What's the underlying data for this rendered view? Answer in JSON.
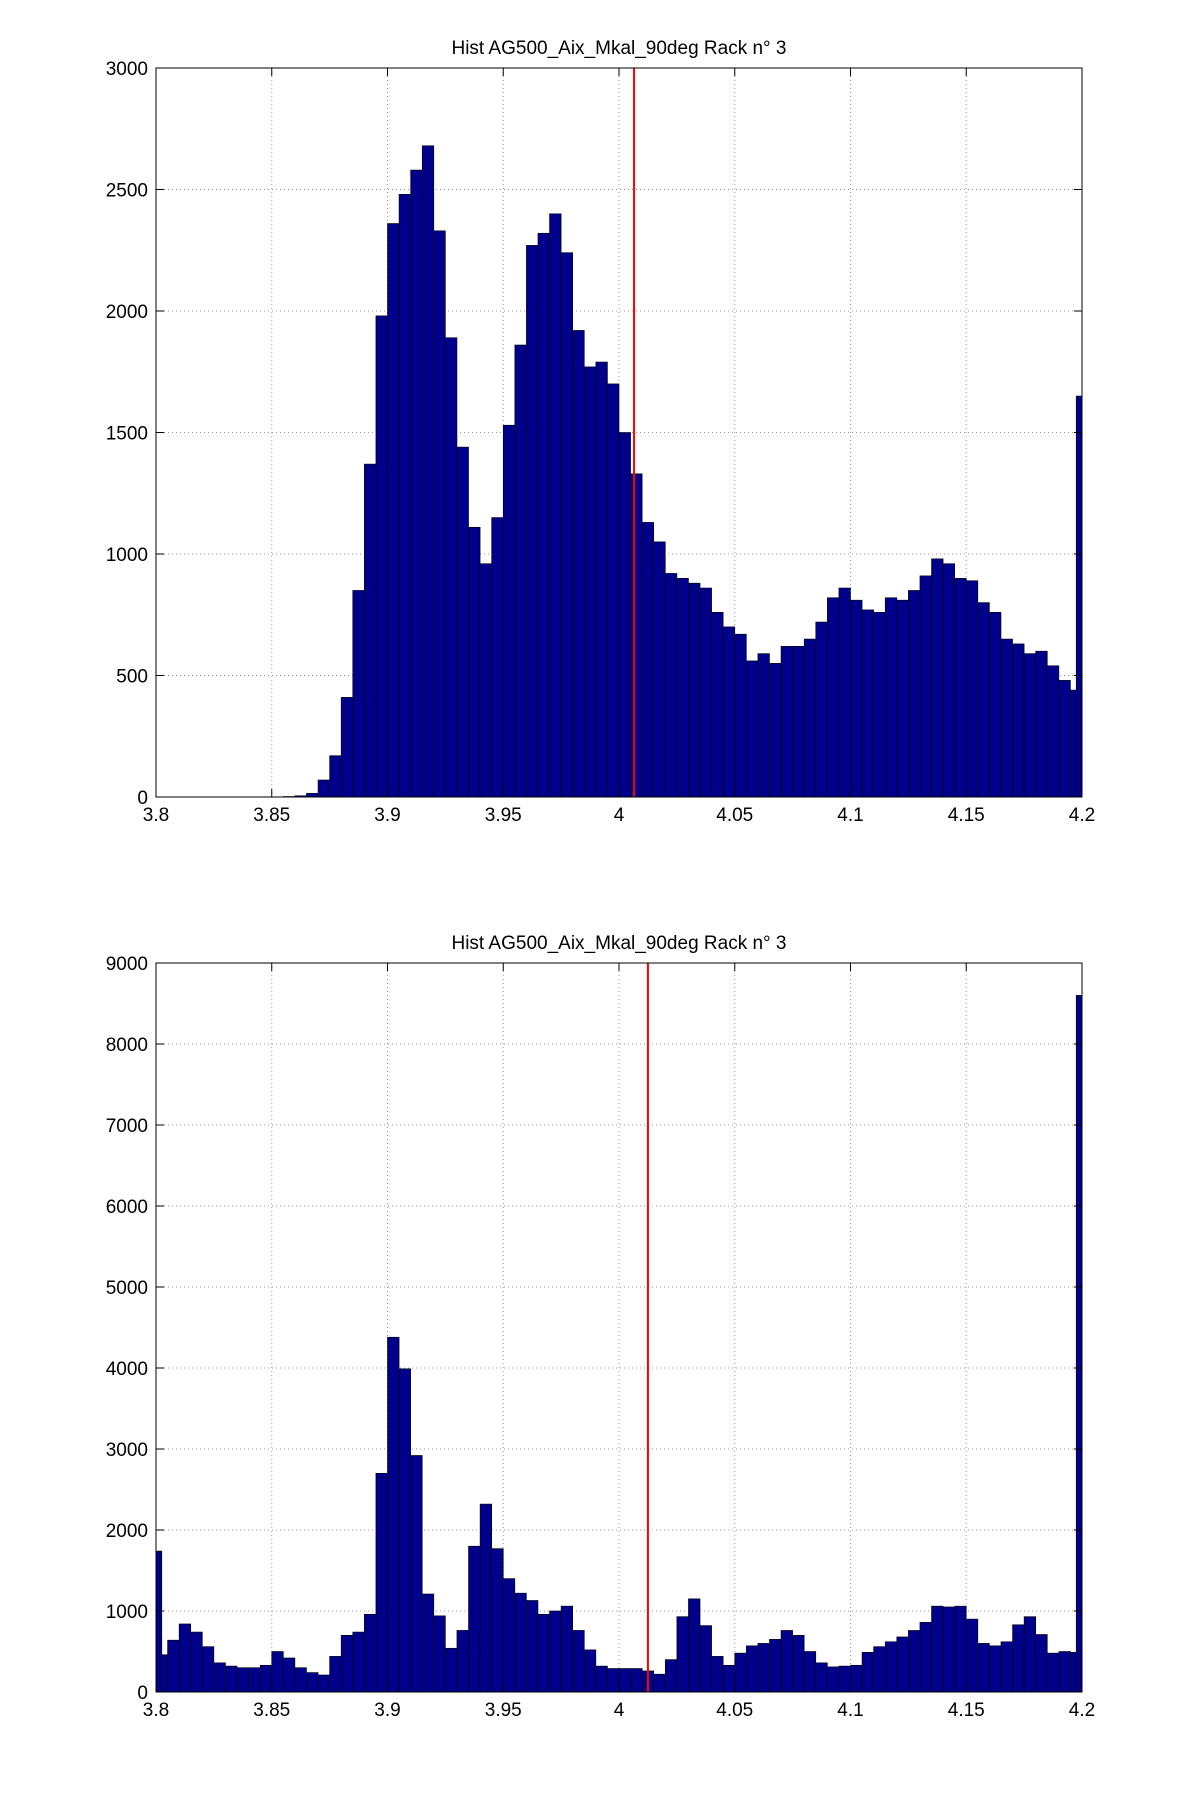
{
  "chart_data": [
    {
      "type": "bar",
      "title": "Hist AG500_Aix_Mkal_90deg Rack n° 3",
      "xlabel": "",
      "ylabel": "",
      "xlim": [
        3.8,
        4.2
      ],
      "ylim": [
        0,
        3000
      ],
      "xticks": [
        "3.8",
        "3.85",
        "3.9",
        "3.95",
        "4",
        "4.05",
        "4.1",
        "4.15",
        "4.2"
      ],
      "yticks": [
        "0",
        "500",
        "1000",
        "1500",
        "2000",
        "2500",
        "3000"
      ],
      "grid": true,
      "bin_width": 0.005,
      "bin_centers": [
        3.8025,
        3.8075,
        3.8125,
        3.8175,
        3.8225,
        3.8275,
        3.8325,
        3.8375,
        3.8425,
        3.8475,
        3.8525,
        3.8575,
        3.8625,
        3.8675,
        3.8725,
        3.8775,
        3.8825,
        3.8875,
        3.8925,
        3.8975,
        3.9025,
        3.9075,
        3.9125,
        3.9175,
        3.9225,
        3.9275,
        3.9325,
        3.9375,
        3.9425,
        3.9475,
        3.9525,
        3.9575,
        3.9625,
        3.9675,
        3.9725,
        3.9775,
        3.9825,
        3.9875,
        3.9925,
        3.9975,
        4.0025,
        4.0075,
        4.0125,
        4.0175,
        4.0225,
        4.0275,
        4.0325,
        4.0375,
        4.0425,
        4.0475,
        4.0525,
        4.0575,
        4.0625,
        4.0675,
        4.0725,
        4.0775,
        4.0825,
        4.0875,
        4.0925,
        4.0975,
        4.1025,
        4.1075,
        4.1125,
        4.1175,
        4.1225,
        4.1275,
        4.1325,
        4.1375,
        4.1425,
        4.1475,
        4.1525,
        4.1575,
        4.1625,
        4.1675,
        4.1725,
        4.1775,
        4.1825,
        4.1875,
        4.1925,
        4.1975
      ],
      "values": [
        0,
        0,
        0,
        0,
        0,
        0,
        0,
        0,
        0,
        0,
        0,
        2,
        5,
        15,
        70,
        170,
        410,
        850,
        1370,
        1980,
        2360,
        2480,
        2580,
        2680,
        2330,
        1890,
        1440,
        1110,
        960,
        1150,
        1530,
        1860,
        2270,
        2320,
        2400,
        2240,
        1920,
        1770,
        1790,
        1700,
        1500,
        1330,
        1130,
        1050,
        920,
        900,
        880,
        860,
        760,
        700,
        670,
        560,
        590,
        550,
        620,
        620,
        650,
        720,
        820,
        860,
        810,
        770,
        760,
        820,
        810,
        850,
        910,
        980,
        960,
        900,
        890,
        800,
        760,
        650,
        630,
        590,
        600,
        540,
        480,
        440
      ],
      "edge_bin": {
        "x": 4.2,
        "value": 1650
      },
      "marker_line": {
        "x": 4.0065,
        "color": "#ff0000"
      },
      "bar_color": "#00008b"
    },
    {
      "type": "bar",
      "title": "Hist AG500_Aix_Mkal_90deg Rack n° 3",
      "xlabel": "",
      "ylabel": "",
      "xlim": [
        3.8,
        4.2
      ],
      "ylim": [
        0,
        9000
      ],
      "xticks": [
        "3.8",
        "3.85",
        "3.9",
        "3.95",
        "4",
        "4.05",
        "4.1",
        "4.15",
        "4.2"
      ],
      "yticks": [
        "0",
        "1000",
        "2000",
        "3000",
        "4000",
        "5000",
        "6000",
        "7000",
        "8000",
        "9000"
      ],
      "grid": true,
      "bin_width": 0.005,
      "bin_centers": [
        3.8025,
        3.8075,
        3.8125,
        3.8175,
        3.8225,
        3.8275,
        3.8325,
        3.8375,
        3.8425,
        3.8475,
        3.8525,
        3.8575,
        3.8625,
        3.8675,
        3.8725,
        3.8775,
        3.8825,
        3.8875,
        3.8925,
        3.8975,
        3.9025,
        3.9075,
        3.9125,
        3.9175,
        3.9225,
        3.9275,
        3.9325,
        3.9375,
        3.9425,
        3.9475,
        3.9525,
        3.9575,
        3.9625,
        3.9675,
        3.9725,
        3.9775,
        3.9825,
        3.9875,
        3.9925,
        3.9975,
        4.0025,
        4.0075,
        4.0125,
        4.0175,
        4.0225,
        4.0275,
        4.0325,
        4.0375,
        4.0425,
        4.0475,
        4.0525,
        4.0575,
        4.0625,
        4.0675,
        4.0725,
        4.0775,
        4.0825,
        4.0875,
        4.0925,
        4.0975,
        4.1025,
        4.1075,
        4.1125,
        4.1175,
        4.1225,
        4.1275,
        4.1325,
        4.1375,
        4.1425,
        4.1475,
        4.1525,
        4.1575,
        4.1625,
        4.1675,
        4.1725,
        4.1775,
        4.1825,
        4.1875,
        4.1925,
        4.1975
      ],
      "values": [
        460,
        640,
        840,
        740,
        560,
        360,
        320,
        300,
        300,
        330,
        500,
        420,
        300,
        240,
        210,
        440,
        700,
        740,
        960,
        2700,
        4380,
        3990,
        2920,
        1210,
        940,
        540,
        760,
        1800,
        2320,
        1770,
        1400,
        1220,
        1130,
        960,
        1000,
        1060,
        760,
        520,
        320,
        290,
        290,
        290,
        260,
        220,
        400,
        930,
        1150,
        820,
        440,
        330,
        480,
        570,
        600,
        650,
        760,
        700,
        500,
        360,
        310,
        320,
        330,
        490,
        560,
        620,
        680,
        760,
        860,
        1060,
        1050,
        1060,
        900,
        600,
        570,
        620,
        830,
        930,
        710,
        480,
        500,
        490
      ],
      "edge_bins": [
        {
          "x": 3.8,
          "value": 1740
        },
        {
          "x": 4.2,
          "value": 8600
        }
      ],
      "marker_line": {
        "x": 4.0125,
        "color": "#ff0000"
      },
      "bar_color": "#00008b"
    }
  ]
}
